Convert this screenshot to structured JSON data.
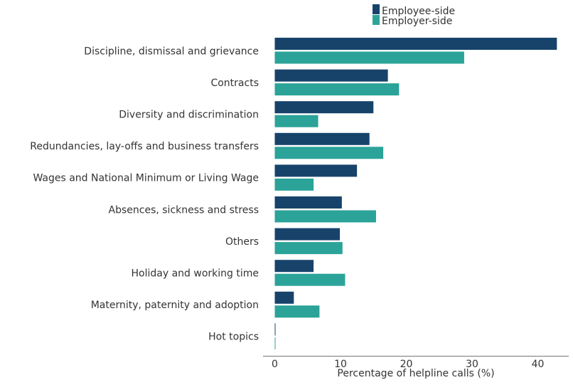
{
  "chart_data": {
    "type": "bar",
    "orientation": "horizontal",
    "title": "",
    "xlabel": "Percentage of helpline calls (%)",
    "ylabel": "",
    "xlim": [
      0,
      45
    ],
    "xticks": [
      0,
      10,
      20,
      30,
      40
    ],
    "grid": false,
    "legend_position": "top-right",
    "categories": [
      "Discipline, dismissal and grievance",
      "Contracts",
      "Diversity and discrimination",
      "Redundancies, lay-offs and business transfers",
      "Wages and National Minimum or Living Wage",
      "Absences, sickness and stress",
      "Others",
      "Holiday and working time",
      "Maternity, paternity and adoption",
      "Hot topics"
    ],
    "series": [
      {
        "name": "Employee-side",
        "color": "#17436b",
        "values": [
          42.9,
          17.2,
          15.0,
          14.4,
          12.5,
          10.2,
          9.9,
          5.9,
          2.9,
          0.1
        ]
      },
      {
        "name": "Employer-side",
        "color": "#2ba398",
        "values": [
          28.8,
          18.9,
          6.6,
          16.5,
          5.9,
          15.4,
          10.3,
          10.7,
          6.8,
          0.1
        ]
      }
    ]
  }
}
